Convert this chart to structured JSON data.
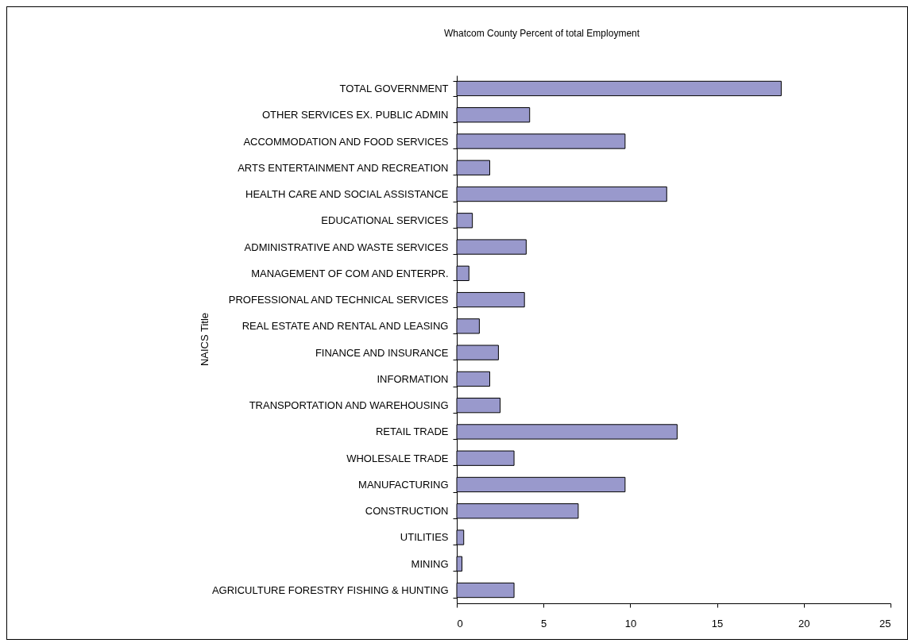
{
  "chart_data": {
    "type": "bar",
    "orientation": "horizontal",
    "title": "Whatcom County Percent of total Employment",
    "ylabel": "NAICS Title",
    "categories": [
      "TOTAL GOVERNMENT",
      "OTHER SERVICES EX. PUBLIC ADMIN",
      "ACCOMMODATION AND FOOD SERVICES",
      "ARTS ENTERTAINMENT AND RECREATION",
      "HEALTH CARE AND SOCIAL ASSISTANCE",
      "EDUCATIONAL SERVICES",
      "ADMINISTRATIVE AND WASTE SERVICES",
      "MANAGEMENT OF COM AND ENTERPR.",
      "PROFESSIONAL AND TECHNICAL SERVICES",
      "REAL ESTATE AND RENTAL AND LEASING",
      "FINANCE AND INSURANCE",
      "INFORMATION",
      "TRANSPORTATION AND WAREHOUSING",
      "RETAIL TRADE",
      "WHOLESALE TRADE",
      "MANUFACTURING",
      "CONSTRUCTION",
      "UTILITIES",
      "MINING",
      "AGRICULTURE FORESTRY FISHING & HUNTING"
    ],
    "values": [
      18.7,
      4.2,
      9.7,
      1.9,
      12.1,
      0.9,
      4.0,
      0.7,
      3.9,
      1.3,
      2.4,
      1.9,
      2.5,
      12.7,
      3.3,
      9.7,
      7.0,
      0.4,
      0.3,
      3.3
    ],
    "color": "#9999cc",
    "xlim": [
      0,
      25
    ],
    "xticks": [
      0,
      5,
      10,
      15,
      20,
      25
    ],
    "grid": false
  }
}
